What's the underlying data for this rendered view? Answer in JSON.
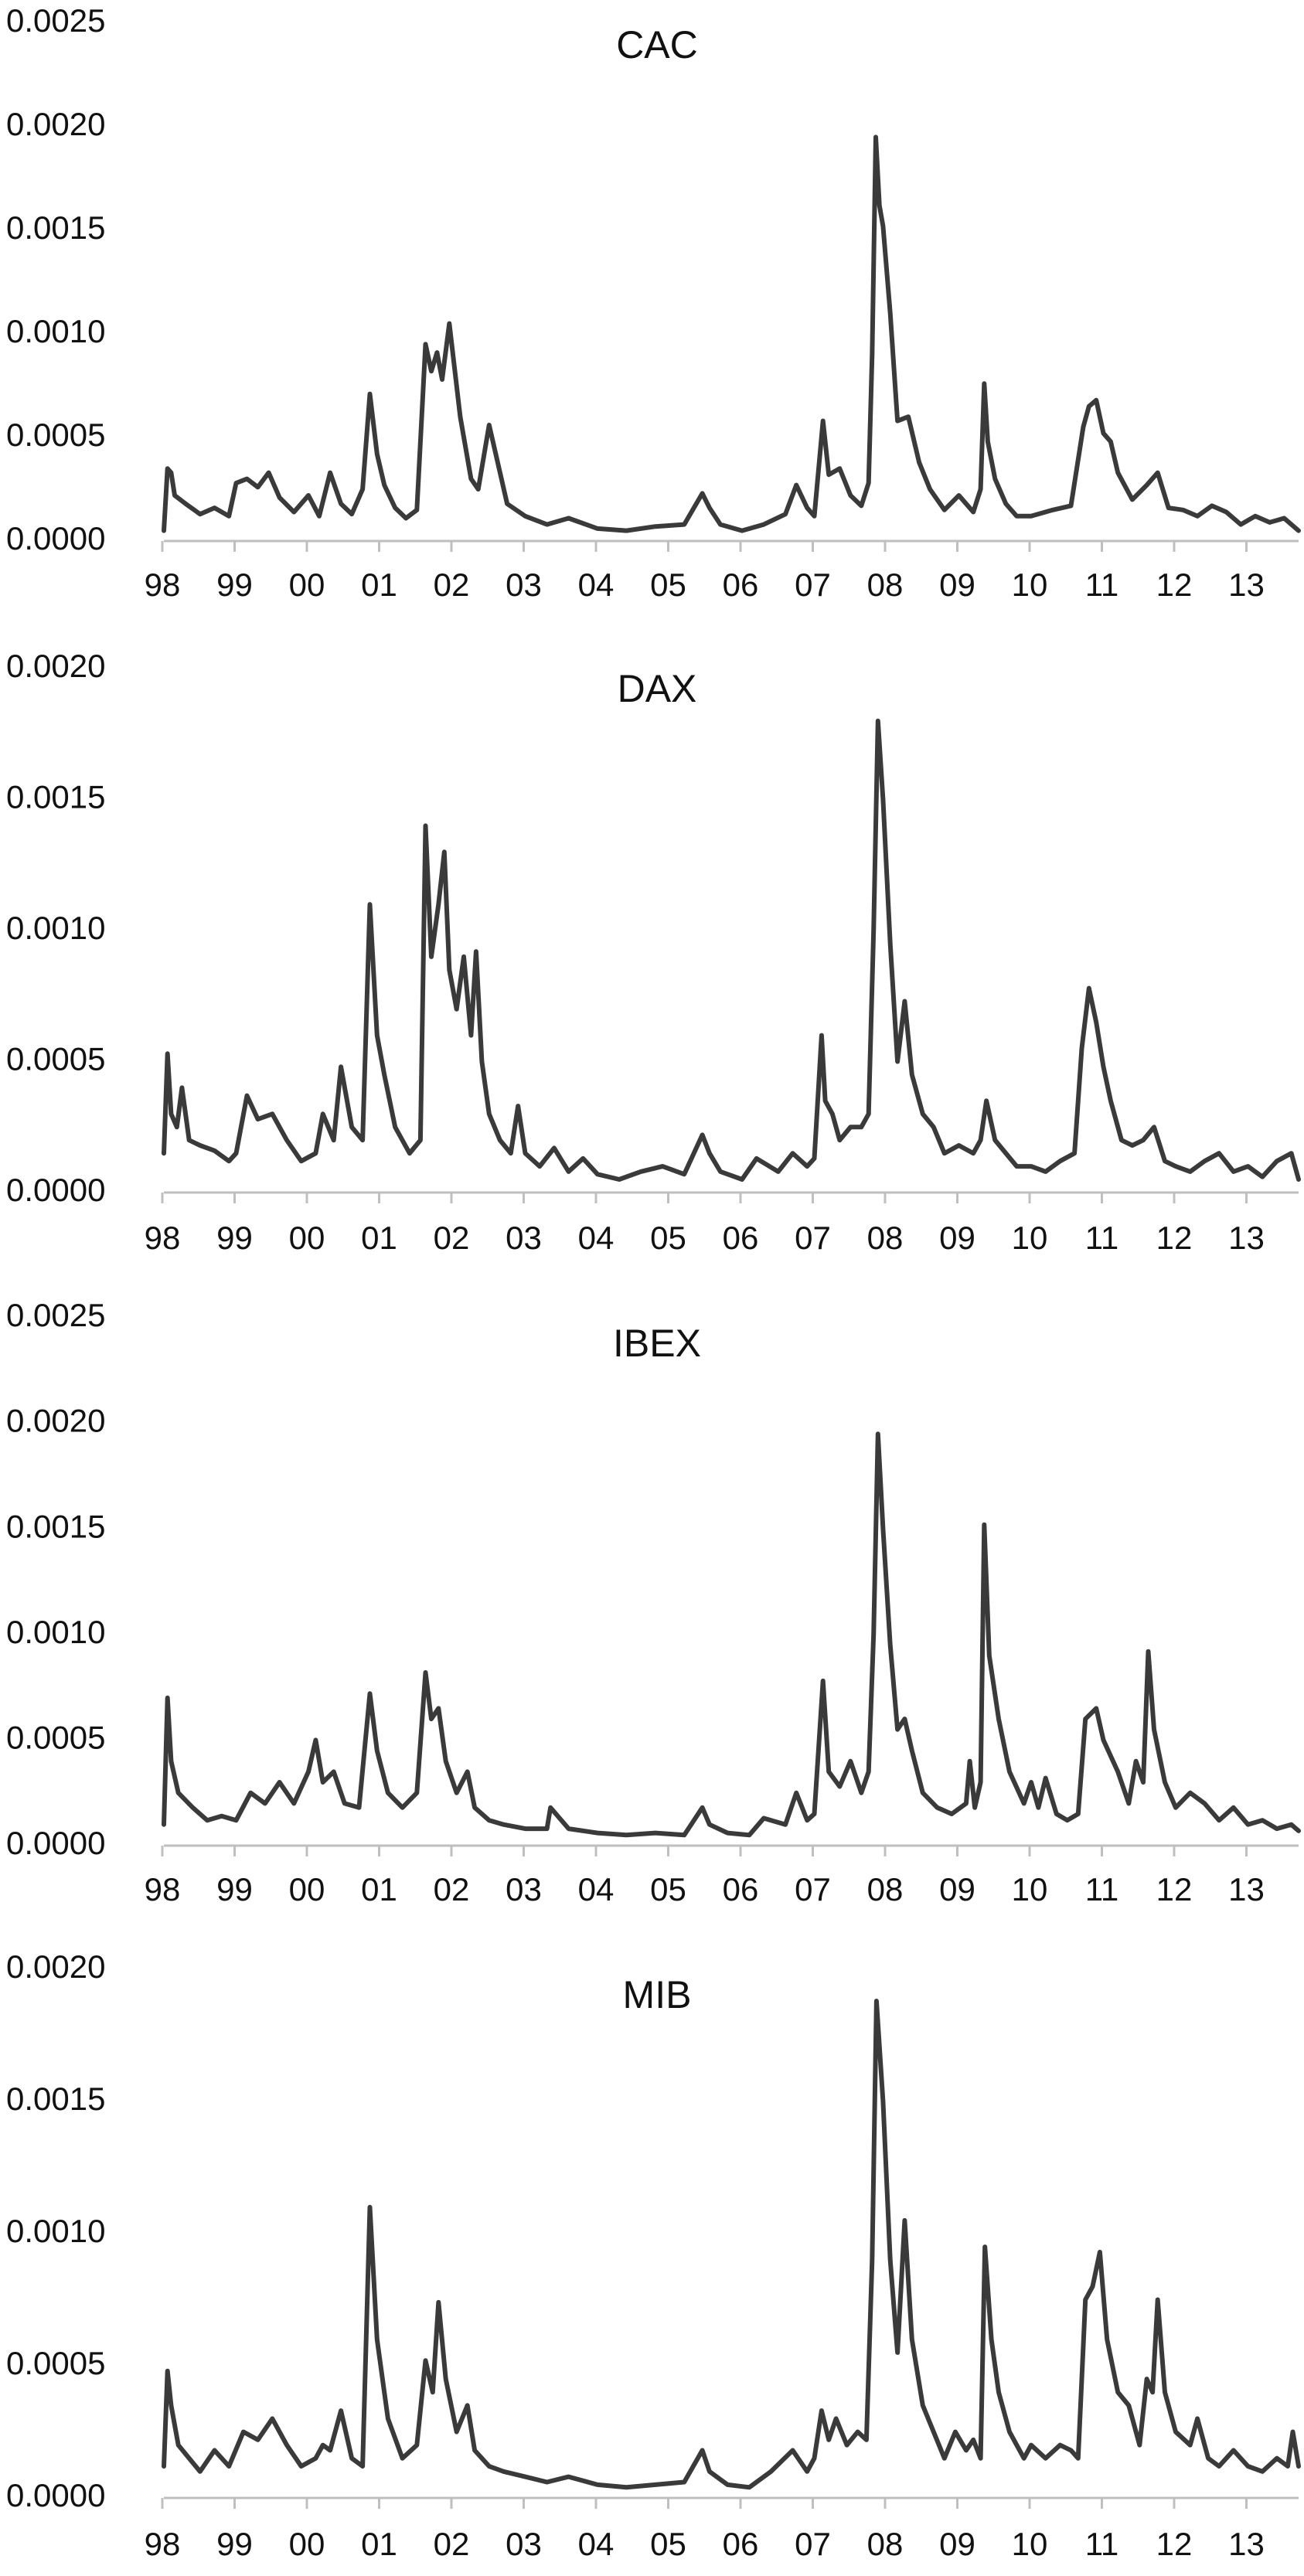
{
  "chart_data": [
    {
      "type": "line",
      "title": "CAC",
      "xlabel": "",
      "ylabel": "",
      "x_tick_labels": [
        "98",
        "99",
        "00",
        "01",
        "02",
        "03",
        "04",
        "05",
        "06",
        "07",
        "08",
        "09",
        "10",
        "11",
        "12",
        "13"
      ],
      "y_tick_labels": [
        "0.0000",
        "0.0005",
        "0.0010",
        "0.0015",
        "0.0020",
        "0.0025"
      ],
      "ylim": [
        0,
        0.0025
      ],
      "xlim": [
        1998.0,
        2013.7
      ],
      "grid": false,
      "legend": "none",
      "color": "#3a3a3a",
      "series": [
        {
          "x": [
            1998.0,
            1998.05,
            1998.1,
            1998.15,
            1998.3,
            1998.5,
            1998.7,
            1998.9,
            1999.0,
            1999.15,
            1999.3,
            1999.45,
            1999.6,
            1999.8,
            2000.0,
            2000.15,
            2000.3,
            2000.45,
            2000.6,
            2000.75,
            2000.85,
            2000.95,
            2001.05,
            2001.2,
            2001.35,
            2001.5,
            2001.62,
            2001.7,
            2001.78,
            2001.85,
            2001.95,
            2002.1,
            2002.25,
            2002.35,
            2002.5,
            2002.75,
            2003.0,
            2003.3,
            2003.6,
            2004.0,
            2004.4,
            2004.8,
            2005.2,
            2005.45,
            2005.55,
            2005.7,
            2006.0,
            2006.3,
            2006.6,
            2006.75,
            2006.9,
            2007.0,
            2007.12,
            2007.2,
            2007.35,
            2007.5,
            2007.65,
            2007.75,
            2007.8,
            2007.85,
            2007.9,
            2007.95,
            2008.05,
            2008.15,
            2008.3,
            2008.45,
            2008.6,
            2008.8,
            2009.0,
            2009.2,
            2009.3,
            2009.35,
            2009.4,
            2009.5,
            2009.65,
            2009.8,
            2010.0,
            2010.3,
            2010.55,
            2010.72,
            2010.8,
            2010.9,
            2011.0,
            2011.1,
            2011.2,
            2011.4,
            2011.6,
            2011.75,
            2011.9,
            2012.1,
            2012.3,
            2012.5,
            2012.7,
            2012.9,
            2013.1,
            2013.3,
            2013.5,
            2013.7
          ],
          "y": [
            5e-05,
            0.00035,
            0.00033,
            0.00022,
            0.00018,
            0.00013,
            0.00016,
            0.00012,
            0.00028,
            0.0003,
            0.00026,
            0.00033,
            0.00021,
            0.00014,
            0.00022,
            0.00012,
            0.00033,
            0.00018,
            0.00013,
            0.00025,
            0.00071,
            0.00042,
            0.00027,
            0.00016,
            0.00011,
            0.00015,
            0.00095,
            0.00082,
            0.00091,
            0.00078,
            0.00105,
            0.0006,
            0.0003,
            0.00025,
            0.00056,
            0.00018,
            0.00012,
            8e-05,
            0.00011,
            6e-05,
            5e-05,
            7e-05,
            8e-05,
            0.00023,
            0.00016,
            8e-05,
            5e-05,
            8e-05,
            0.00013,
            0.00027,
            0.00016,
            0.00012,
            0.00058,
            0.00032,
            0.00035,
            0.00022,
            0.00017,
            0.00028,
            0.0009,
            0.00195,
            0.00162,
            0.00152,
            0.0011,
            0.00058,
            0.0006,
            0.00038,
            0.00025,
            0.00015,
            0.00022,
            0.00014,
            0.00025,
            0.00076,
            0.00048,
            0.0003,
            0.00018,
            0.00012,
            0.00012,
            0.00015,
            0.00017,
            0.00055,
            0.00065,
            0.00068,
            0.00052,
            0.00048,
            0.00033,
            0.0002,
            0.00027,
            0.00033,
            0.00016,
            0.00015,
            0.00012,
            0.00017,
            0.00014,
            8e-05,
            0.00012,
            9e-05,
            0.00011,
            5e-05
          ]
        }
      ]
    },
    {
      "type": "line",
      "title": "DAX",
      "xlabel": "",
      "ylabel": "",
      "x_tick_labels": [
        "98",
        "99",
        "00",
        "01",
        "02",
        "03",
        "04",
        "05",
        "06",
        "07",
        "08",
        "09",
        "10",
        "11",
        "12",
        "13"
      ],
      "y_tick_labels": [
        "0.0000",
        "0.0005",
        "0.0010",
        "0.0015",
        "0.0020"
      ],
      "ylim": [
        0,
        0.002
      ],
      "xlim": [
        1998.0,
        2013.7
      ],
      "grid": false,
      "legend": "none",
      "color": "#3a3a3a",
      "series": [
        {
          "x": [
            1998.0,
            1998.05,
            1998.1,
            1998.18,
            1998.25,
            1998.35,
            1998.5,
            1998.7,
            1998.9,
            1999.0,
            1999.15,
            1999.3,
            1999.5,
            1999.7,
            1999.9,
            2000.1,
            2000.2,
            2000.35,
            2000.45,
            2000.6,
            2000.75,
            2000.85,
            2000.95,
            2001.05,
            2001.2,
            2001.4,
            2001.55,
            2001.62,
            2001.7,
            2001.8,
            2001.88,
            2001.95,
            2002.05,
            2002.15,
            2002.25,
            2002.32,
            2002.4,
            2002.5,
            2002.65,
            2002.8,
            2002.9,
            2003.0,
            2003.2,
            2003.4,
            2003.6,
            2003.8,
            2004.0,
            2004.3,
            2004.6,
            2004.9,
            2005.2,
            2005.45,
            2005.55,
            2005.7,
            2006.0,
            2006.2,
            2006.5,
            2006.7,
            2006.9,
            2007.0,
            2007.1,
            2007.15,
            2007.25,
            2007.35,
            2007.5,
            2007.65,
            2007.75,
            2007.82,
            2007.88,
            2007.95,
            2008.05,
            2008.15,
            2008.25,
            2008.35,
            2008.5,
            2008.65,
            2008.8,
            2009.0,
            2009.2,
            2009.3,
            2009.38,
            2009.5,
            2009.65,
            2009.8,
            2010.0,
            2010.2,
            2010.4,
            2010.6,
            2010.7,
            2010.8,
            2010.9,
            2011.0,
            2011.1,
            2011.25,
            2011.4,
            2011.55,
            2011.7,
            2011.85,
            2012.0,
            2012.2,
            2012.4,
            2012.6,
            2012.8,
            2013.0,
            2013.2,
            2013.4,
            2013.6,
            2013.7
          ],
          "y": [
            0.00015,
            0.00053,
            0.0003,
            0.00025,
            0.0004,
            0.0002,
            0.00018,
            0.00016,
            0.00012,
            0.00015,
            0.00037,
            0.00028,
            0.0003,
            0.0002,
            0.00012,
            0.00015,
            0.0003,
            0.0002,
            0.00048,
            0.00025,
            0.0002,
            0.0011,
            0.0006,
            0.00045,
            0.00025,
            0.00015,
            0.0002,
            0.0014,
            0.0009,
            0.0011,
            0.0013,
            0.00085,
            0.0007,
            0.0009,
            0.0006,
            0.00092,
            0.0005,
            0.0003,
            0.0002,
            0.00015,
            0.00033,
            0.00015,
            0.0001,
            0.00017,
            8e-05,
            0.00013,
            7e-05,
            5e-05,
            8e-05,
            0.0001,
            7e-05,
            0.00022,
            0.00015,
            8e-05,
            5e-05,
            0.00013,
            8e-05,
            0.00015,
            0.0001,
            0.00013,
            0.0006,
            0.00035,
            0.0003,
            0.0002,
            0.00025,
            0.00025,
            0.0003,
            0.001,
            0.0018,
            0.0015,
            0.00095,
            0.0005,
            0.00073,
            0.00045,
            0.0003,
            0.00025,
            0.00015,
            0.00018,
            0.00015,
            0.0002,
            0.00035,
            0.0002,
            0.00015,
            0.0001,
            0.0001,
            8e-05,
            0.00012,
            0.00015,
            0.00055,
            0.00078,
            0.00065,
            0.00048,
            0.00035,
            0.0002,
            0.00018,
            0.0002,
            0.00025,
            0.00012,
            0.0001,
            8e-05,
            0.00012,
            0.00015,
            8e-05,
            0.0001,
            6e-05,
            0.00012,
            0.00015,
            5e-05
          ]
        }
      ]
    },
    {
      "type": "line",
      "title": "IBEX",
      "xlabel": "",
      "ylabel": "",
      "x_tick_labels": [
        "98",
        "99",
        "00",
        "01",
        "02",
        "03",
        "04",
        "05",
        "06",
        "07",
        "08",
        "09",
        "10",
        "11",
        "12",
        "13"
      ],
      "y_tick_labels": [
        "0.0000",
        "0.0005",
        "0.0010",
        "0.0015",
        "0.0020",
        "0.0025"
      ],
      "ylim": [
        0,
        0.0025
      ],
      "xlim": [
        1998.0,
        2013.7
      ],
      "grid": false,
      "legend": "none",
      "color": "#3a3a3a",
      "series": [
        {
          "x": [
            1998.0,
            1998.05,
            1998.1,
            1998.2,
            1998.4,
            1998.6,
            1998.8,
            1999.0,
            1999.2,
            1999.4,
            1999.6,
            1999.8,
            2000.0,
            2000.1,
            2000.2,
            2000.35,
            2000.5,
            2000.7,
            2000.85,
            2000.95,
            2001.1,
            2001.3,
            2001.5,
            2001.62,
            2001.7,
            2001.8,
            2001.9,
            2002.05,
            2002.2,
            2002.3,
            2002.5,
            2002.7,
            2003.0,
            2003.3,
            2003.35,
            2003.6,
            2004.0,
            2004.4,
            2004.8,
            2005.2,
            2005.45,
            2005.55,
            2005.8,
            2006.1,
            2006.3,
            2006.6,
            2006.75,
            2006.9,
            2007.0,
            2007.12,
            2007.2,
            2007.35,
            2007.5,
            2007.65,
            2007.75,
            2007.82,
            2007.88,
            2007.95,
            2008.05,
            2008.15,
            2008.25,
            2008.35,
            2008.5,
            2008.7,
            2008.9,
            2009.1,
            2009.15,
            2009.22,
            2009.3,
            2009.35,
            2009.42,
            2009.55,
            2009.7,
            2009.9,
            2010.0,
            2010.1,
            2010.2,
            2010.35,
            2010.5,
            2010.65,
            2010.75,
            2010.9,
            2011.0,
            2011.2,
            2011.35,
            2011.45,
            2011.55,
            2011.62,
            2011.7,
            2011.85,
            2012.0,
            2012.2,
            2012.4,
            2012.6,
            2012.8,
            2013.0,
            2013.2,
            2013.4,
            2013.6,
            2013.7
          ],
          "y": [
            0.0001,
            0.0007,
            0.0004,
            0.00025,
            0.00018,
            0.00012,
            0.00014,
            0.00012,
            0.00025,
            0.0002,
            0.0003,
            0.0002,
            0.00035,
            0.0005,
            0.0003,
            0.00035,
            0.0002,
            0.00018,
            0.00072,
            0.00045,
            0.00025,
            0.00018,
            0.00025,
            0.00082,
            0.0006,
            0.00065,
            0.0004,
            0.00025,
            0.00035,
            0.00018,
            0.00012,
            0.0001,
            8e-05,
            8e-05,
            0.00018,
            8e-05,
            6e-05,
            5e-05,
            6e-05,
            5e-05,
            0.00018,
            0.0001,
            6e-05,
            5e-05,
            0.00013,
            0.0001,
            0.00025,
            0.00012,
            0.00015,
            0.00078,
            0.00035,
            0.00028,
            0.0004,
            0.00025,
            0.00035,
            0.001,
            0.00195,
            0.0015,
            0.00095,
            0.00055,
            0.0006,
            0.00045,
            0.00025,
            0.00018,
            0.00015,
            0.0002,
            0.0004,
            0.00018,
            0.0003,
            0.00152,
            0.0009,
            0.0006,
            0.00035,
            0.0002,
            0.0003,
            0.00018,
            0.00032,
            0.00015,
            0.00012,
            0.00015,
            0.0006,
            0.00065,
            0.0005,
            0.00035,
            0.0002,
            0.0004,
            0.0003,
            0.00092,
            0.00055,
            0.0003,
            0.00018,
            0.00025,
            0.0002,
            0.00012,
            0.00018,
            0.0001,
            0.00012,
            8e-05,
            0.0001,
            7e-05
          ]
        }
      ]
    },
    {
      "type": "line",
      "title": "MIB",
      "xlabel": "",
      "ylabel": "",
      "x_tick_labels": [
        "98",
        "99",
        "00",
        "01",
        "02",
        "03",
        "04",
        "05",
        "06",
        "07",
        "08",
        "09",
        "10",
        "11",
        "12",
        "13"
      ],
      "y_tick_labels": [
        "0.0000",
        "0.0005",
        "0.0010",
        "0.0015",
        "0.0020"
      ],
      "ylim": [
        0,
        0.002
      ],
      "xlim": [
        1998.0,
        2013.7
      ],
      "grid": false,
      "legend": "none",
      "color": "#3a3a3a",
      "series": [
        {
          "x": [
            1998.0,
            1998.05,
            1998.1,
            1998.2,
            1998.35,
            1998.5,
            1998.7,
            1998.9,
            1999.1,
            1999.3,
            1999.5,
            1999.7,
            1999.9,
            2000.1,
            2000.2,
            2000.3,
            2000.45,
            2000.6,
            2000.75,
            2000.85,
            2000.95,
            2001.1,
            2001.3,
            2001.5,
            2001.62,
            2001.72,
            2001.8,
            2001.9,
            2002.05,
            2002.2,
            2002.3,
            2002.5,
            2002.7,
            2003.0,
            2003.3,
            2003.6,
            2004.0,
            2004.4,
            2004.8,
            2005.2,
            2005.45,
            2005.55,
            2005.8,
            2006.1,
            2006.4,
            2006.7,
            2006.9,
            2007.0,
            2007.1,
            2007.2,
            2007.3,
            2007.45,
            2007.6,
            2007.72,
            2007.8,
            2007.86,
            2007.95,
            2008.05,
            2008.15,
            2008.25,
            2008.35,
            2008.5,
            2008.65,
            2008.8,
            2008.95,
            2009.1,
            2009.2,
            2009.3,
            2009.36,
            2009.45,
            2009.55,
            2009.7,
            2009.9,
            2010.0,
            2010.2,
            2010.4,
            2010.55,
            2010.65,
            2010.75,
            2010.85,
            2010.95,
            2011.05,
            2011.2,
            2011.35,
            2011.5,
            2011.6,
            2011.68,
            2011.75,
            2011.85,
            2012.0,
            2012.2,
            2012.3,
            2012.45,
            2012.6,
            2012.8,
            2013.0,
            2013.2,
            2013.4,
            2013.55,
            2013.62,
            2013.7
          ],
          "y": [
            0.00012,
            0.00048,
            0.00035,
            0.0002,
            0.00015,
            0.0001,
            0.00018,
            0.00012,
            0.00025,
            0.00022,
            0.0003,
            0.0002,
            0.00012,
            0.00015,
            0.0002,
            0.00018,
            0.00033,
            0.00015,
            0.00012,
            0.0011,
            0.0006,
            0.0003,
            0.00015,
            0.0002,
            0.00052,
            0.0004,
            0.00074,
            0.00045,
            0.00025,
            0.00035,
            0.00018,
            0.00012,
            0.0001,
            8e-05,
            6e-05,
            8e-05,
            5e-05,
            4e-05,
            5e-05,
            6e-05,
            0.00018,
            0.0001,
            5e-05,
            4e-05,
            0.0001,
            0.00018,
            0.0001,
            0.00015,
            0.00033,
            0.00022,
            0.0003,
            0.0002,
            0.00025,
            0.00022,
            0.0009,
            0.00188,
            0.0015,
            0.0009,
            0.00055,
            0.00105,
            0.0006,
            0.00035,
            0.00025,
            0.00015,
            0.00025,
            0.00018,
            0.00022,
            0.00015,
            0.00095,
            0.0006,
            0.0004,
            0.00025,
            0.00015,
            0.0002,
            0.00015,
            0.0002,
            0.00018,
            0.00015,
            0.00075,
            0.0008,
            0.00093,
            0.0006,
            0.0004,
            0.00035,
            0.0002,
            0.00045,
            0.0004,
            0.00075,
            0.0004,
            0.00025,
            0.0002,
            0.0003,
            0.00015,
            0.00012,
            0.00018,
            0.00012,
            0.0001,
            0.00015,
            0.00012,
            0.00025,
            0.00012
          ]
        }
      ]
    }
  ]
}
